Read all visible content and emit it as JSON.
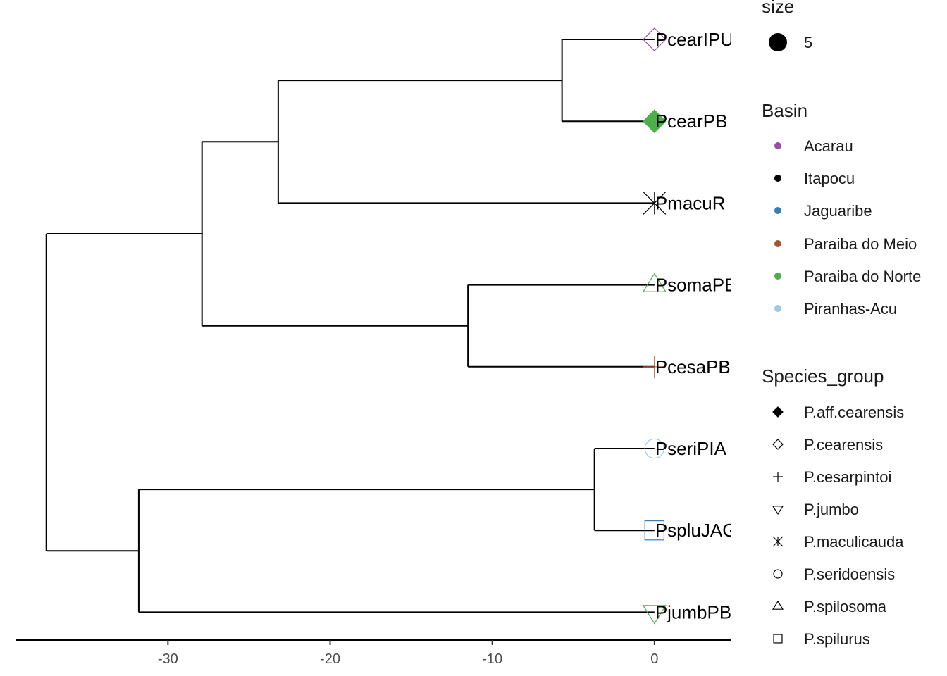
{
  "chart_data": {
    "type": "phylogenetic-tree",
    "x_axis": {
      "ticks": [
        -30,
        -20,
        -10,
        0
      ],
      "range": [
        -39.4,
        4.7
      ]
    },
    "tips": [
      {
        "label": "PcearIPU",
        "basin": "Acarau",
        "species_group": "P.cearensis",
        "x": 0
      },
      {
        "label": "PcearPB",
        "basin": "Paraiba do Norte",
        "species_group": "P.aff.cearensis",
        "x": 0
      },
      {
        "label": "PmacuR",
        "basin": "Itapocu",
        "species_group": "P.maculicauda",
        "x": 0
      },
      {
        "label": "PsomaPB",
        "basin": "Paraiba do Norte",
        "species_group": "P.spilosoma",
        "x": 0
      },
      {
        "label": "PcesaPB",
        "basin": "Paraiba do Meio",
        "species_group": "P.cesarpintoi",
        "x": 0
      },
      {
        "label": "PseriPIA",
        "basin": "Piranhas-Acu",
        "species_group": "P.seridoensis",
        "x": 0
      },
      {
        "label": "PspluJAG",
        "basin": "Jaguaribe",
        "species_group": "P.spilurus",
        "x": 0
      },
      {
        "label": "PjumbPB",
        "basin": "Paraiba do Norte",
        "species_group": "P.jumbo",
        "x": 0
      }
    ],
    "nodes": [
      {
        "name": "n_cear",
        "x": -5.7,
        "children": [
          "PcearIPU",
          "PcearPB"
        ]
      },
      {
        "name": "n_cear_macu",
        "x": -23.2,
        "children": [
          "n_cear",
          "PmacuR"
        ]
      },
      {
        "name": "n_soma_cesa",
        "x": -11.5,
        "children": [
          "PsomaPB",
          "PcesaPB"
        ]
      },
      {
        "name": "n_upper",
        "x": -27.9,
        "children": [
          "n_cear_macu",
          "n_soma_cesa"
        ]
      },
      {
        "name": "n_seri_splu",
        "x": -3.7,
        "children": [
          "PseriPIA",
          "PspluJAG"
        ]
      },
      {
        "name": "n_lower",
        "x": -31.8,
        "children": [
          "n_seri_splu",
          "PjumbPB"
        ]
      },
      {
        "name": "root",
        "x": -37.5,
        "children": [
          "n_upper",
          "n_lower"
        ]
      }
    ],
    "legends": {
      "size": {
        "title": "size",
        "entries": [
          {
            "label": "5"
          }
        ]
      },
      "basin": {
        "title": "Basin",
        "entries": [
          {
            "label": "Acarau",
            "color": "#984EA3"
          },
          {
            "label": "Itapocu",
            "color": "#000000"
          },
          {
            "label": "Jaguaribe",
            "color": "#377EB8"
          },
          {
            "label": "Paraiba do Meio",
            "color": "#A6562C"
          },
          {
            "label": "Paraiba do Norte",
            "color": "#4DAF4A"
          },
          {
            "label": "Piranhas-Acu",
            "color": "#9ECAE1"
          }
        ]
      },
      "species_group": {
        "title": "Species_group",
        "entries": [
          {
            "label": "P.aff.cearensis",
            "shape": "filled-diamond"
          },
          {
            "label": "P.cearensis",
            "shape": "open-diamond"
          },
          {
            "label": "P.cesarpintoi",
            "shape": "plus"
          },
          {
            "label": "P.jumbo",
            "shape": "open-triangle-down"
          },
          {
            "label": "P.maculicauda",
            "shape": "asterisk"
          },
          {
            "label": "P.seridoensis",
            "shape": "open-circle"
          },
          {
            "label": "P.spilosoma",
            "shape": "open-triangle-up"
          },
          {
            "label": "P.spilurus",
            "shape": "open-square"
          }
        ]
      }
    }
  }
}
